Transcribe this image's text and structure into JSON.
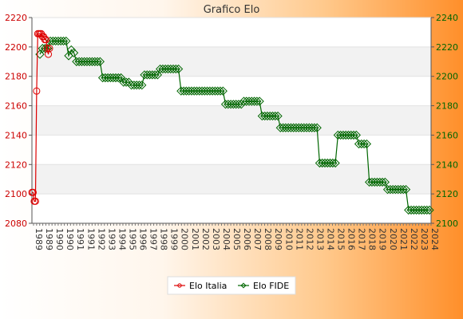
{
  "chart_data": {
    "type": "line",
    "title": "Grafico Elo",
    "xlabel": "",
    "ylabel": "",
    "grid": "horizontal alternating bands",
    "legend_position": "bottom-center",
    "y_left": {
      "min": 2080,
      "max": 2220,
      "ticks": [
        2080,
        2100,
        2120,
        2140,
        2160,
        2180,
        2200,
        2220
      ],
      "color": "#cc0000"
    },
    "y_right": {
      "min": 2100,
      "max": 2240,
      "ticks": [
        2100,
        2120,
        2140,
        2160,
        2180,
        2200,
        2220,
        2240
      ],
      "color": "#006600"
    },
    "x_tick_labels": [
      "1989",
      "1989",
      "1990",
      "1990",
      "1991",
      "1991",
      "1992",
      "1993",
      "1994",
      "1995",
      "1996",
      "1997",
      "1998",
      "1999",
      "2000",
      "2001",
      "2002",
      "2003",
      "2004",
      "2005",
      "2006",
      "2007",
      "2008",
      "2009",
      "2010",
      "2011",
      "2012",
      "2013",
      "2014",
      "2015",
      "2016",
      "2017",
      "2018",
      "2019",
      "2020",
      "2021",
      "2022",
      "2023",
      "2024"
    ],
    "series": [
      {
        "name": "Elo Italia",
        "axis": "left",
        "color": "#dd0000",
        "values": [
          2101,
          2101,
          2095,
          2095,
          2170,
          2209,
          2209,
          2209,
          2209,
          2207,
          2207,
          2205,
          2205,
          2199,
          2195,
          2199
        ]
      },
      {
        "name": "Elo FIDE",
        "axis": "right",
        "color": "#006600",
        "values": [
          2215,
          2219,
          2219,
          2219,
          2224,
          2224,
          2224,
          2224,
          2224,
          2224,
          2224,
          2214,
          2218,
          2216,
          2210,
          2210,
          2210,
          2210,
          2210,
          2210,
          2210,
          2210,
          2210,
          2210,
          2199,
          2199,
          2199,
          2199,
          2199,
          2199,
          2199,
          2199,
          2196,
          2196,
          2196,
          2194,
          2194,
          2194,
          2194,
          2194,
          2201,
          2201,
          2201,
          2201,
          2201,
          2201,
          2205,
          2205,
          2205,
          2205,
          2205,
          2205,
          2205,
          2205,
          2190,
          2190,
          2190,
          2190,
          2190,
          2190,
          2190,
          2190,
          2190,
          2190,
          2190,
          2190,
          2190,
          2190,
          2190,
          2190,
          2190,
          2181,
          2181,
          2181,
          2181,
          2181,
          2181,
          2181,
          2183,
          2183,
          2183,
          2183,
          2183,
          2183,
          2183,
          2173,
          2173,
          2173,
          2173,
          2173,
          2173,
          2173,
          2165,
          2165,
          2165,
          2165,
          2165,
          2165,
          2165,
          2165,
          2165,
          2165,
          2165,
          2165,
          2165,
          2165,
          2165,
          2141,
          2141,
          2141,
          2141,
          2141,
          2141,
          2141,
          2160,
          2160,
          2160,
          2160,
          2160,
          2160,
          2160,
          2160,
          2154,
          2154,
          2154,
          2154,
          2128,
          2128,
          2128,
          2128,
          2128,
          2128,
          2128,
          2123,
          2123,
          2123,
          2123,
          2123,
          2123,
          2123,
          2123,
          2109,
          2109,
          2109,
          2109,
          2109,
          2109,
          2109,
          2109,
          2109
        ]
      }
    ]
  }
}
